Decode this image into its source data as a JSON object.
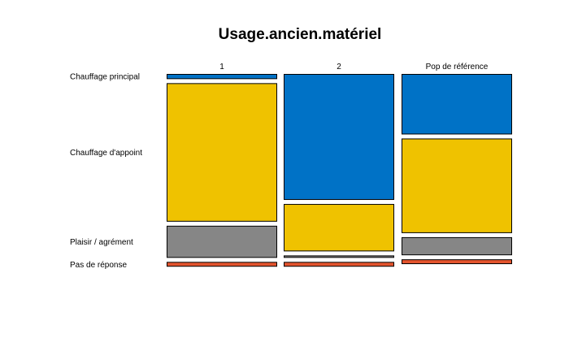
{
  "chart_data": {
    "type": "mosaic",
    "title": "Usage.ancien.matériel",
    "categories": [
      "1",
      "2",
      "Pop de référence"
    ],
    "series": [
      {
        "name": "Chauffage principal",
        "values": [
          0.028,
          0.683,
          0.328
        ],
        "color": "#0072c6"
      },
      {
        "name": "Chauffage d'appoint",
        "values": [
          0.751,
          0.257,
          0.513
        ],
        "color": "#efc200"
      },
      {
        "name": "Plaisir / agrément",
        "values": [
          0.174,
          0.013,
          0.098
        ],
        "color": "#868686"
      },
      {
        "name": "Pas de réponse",
        "values": [
          0.026,
          0.026,
          0.026
        ],
        "color": "#e4542e"
      }
    ]
  }
}
